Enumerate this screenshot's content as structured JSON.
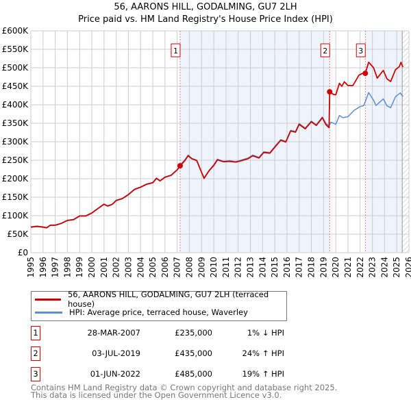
{
  "chart_data": {
    "type": "line",
    "title": "56, AARONS HILL, GODALMING, GU7 2LH",
    "subtitle": "Price paid vs. HM Land Registry's House Price Index (HPI)",
    "xlim": [
      1995,
      2026
    ],
    "ylim": [
      0,
      600000
    ],
    "x_ticks": [
      "1995",
      "1996",
      "1997",
      "1998",
      "1999",
      "2000",
      "2001",
      "2002",
      "2003",
      "2004",
      "2005",
      "2006",
      "2007",
      "2008",
      "2009",
      "2010",
      "2011",
      "2012",
      "2013",
      "2014",
      "2015",
      "2016",
      "2017",
      "2018",
      "2019",
      "2020",
      "2021",
      "2022",
      "2023",
      "2024",
      "2025",
      "2026"
    ],
    "y_ticks": [
      {
        "v": 0,
        "label": "£0"
      },
      {
        "v": 50000,
        "label": "£50K"
      },
      {
        "v": 100000,
        "label": "£100K"
      },
      {
        "v": 150000,
        "label": "£150K"
      },
      {
        "v": 200000,
        "label": "£200K"
      },
      {
        "v": 250000,
        "label": "£250K"
      },
      {
        "v": 300000,
        "label": "£300K"
      },
      {
        "v": 350000,
        "label": "£350K"
      },
      {
        "v": 400000,
        "label": "£400K"
      },
      {
        "v": 450000,
        "label": "£450K"
      },
      {
        "v": 500000,
        "label": "£500K"
      },
      {
        "v": 550000,
        "label": "£550K"
      },
      {
        "v": 600000,
        "label": "£600K"
      }
    ],
    "grid": true,
    "forecast_start": 2025.45,
    "series": [
      {
        "name": "HPI: Average price, terraced house, Waverley",
        "color": "#5b8fd4",
        "points": [
          [
            1995,
            70
          ],
          [
            1995.5,
            72
          ],
          [
            1996,
            70
          ],
          [
            1996.3,
            68
          ],
          [
            1996.6,
            75
          ],
          [
            1997,
            75
          ],
          [
            1997.5,
            80
          ],
          [
            1998,
            88
          ],
          [
            1998.5,
            90
          ],
          [
            1999,
            100
          ],
          [
            1999.5,
            100
          ],
          [
            2000,
            108
          ],
          [
            2000.5,
            120
          ],
          [
            2001,
            132
          ],
          [
            2001.3,
            127
          ],
          [
            2001.7,
            132
          ],
          [
            2002,
            142
          ],
          [
            2002.5,
            147
          ],
          [
            2003,
            158
          ],
          [
            2003.5,
            172
          ],
          [
            2004,
            178
          ],
          [
            2004.5,
            186
          ],
          [
            2005,
            190
          ],
          [
            2005.3,
            202
          ],
          [
            2005.6,
            195
          ],
          [
            2006,
            205
          ],
          [
            2006.5,
            210
          ],
          [
            2007,
            225
          ],
          [
            2007.24,
            237
          ],
          [
            2007.6,
            250
          ],
          [
            2007.9,
            264
          ],
          [
            2008.2,
            255
          ],
          [
            2008.6,
            250
          ],
          [
            2009,
            218
          ],
          [
            2009.2,
            202
          ],
          [
            2009.6,
            222
          ],
          [
            2010,
            238
          ],
          [
            2010.3,
            253
          ],
          [
            2010.8,
            247
          ],
          [
            2011.3,
            249
          ],
          [
            2011.8,
            246
          ],
          [
            2012.3,
            251
          ],
          [
            2012.8,
            256
          ],
          [
            2013.2,
            264
          ],
          [
            2013.7,
            258
          ],
          [
            2014.1,
            273
          ],
          [
            2014.6,
            271
          ],
          [
            2015.1,
            291
          ],
          [
            2015.5,
            306
          ],
          [
            2015.9,
            301
          ],
          [
            2016.3,
            331
          ],
          [
            2016.7,
            328
          ],
          [
            2017,
            349
          ],
          [
            2017.5,
            337
          ],
          [
            2018,
            356
          ],
          [
            2018.4,
            346
          ],
          [
            2018.9,
            367
          ],
          [
            2019.2,
            349
          ],
          [
            2019.45,
            343
          ],
          [
            2019.6,
            353
          ],
          [
            2020,
            347
          ],
          [
            2020.3,
            371
          ],
          [
            2020.6,
            365
          ],
          [
            2021,
            368
          ],
          [
            2021.5,
            385
          ],
          [
            2022,
            395
          ],
          [
            2022.3,
            398
          ],
          [
            2022.7,
            433
          ],
          [
            2023.1,
            412
          ],
          [
            2023.3,
            398
          ],
          [
            2023.9,
            416
          ],
          [
            2024.2,
            397
          ],
          [
            2024.5,
            392
          ],
          [
            2024.9,
            422
          ],
          [
            2025.3,
            432
          ],
          [
            2025.5,
            422
          ]
        ]
      },
      {
        "name": "56, AARONS HILL, GODALMING, GU7 2LH (terraced house)",
        "color": "#cc0000",
        "points": [
          [
            1995,
            69
          ],
          [
            1995.5,
            71
          ],
          [
            1996,
            69
          ],
          [
            1996.3,
            67
          ],
          [
            1996.6,
            74
          ],
          [
            1997,
            74
          ],
          [
            1997.5,
            79
          ],
          [
            1998,
            87
          ],
          [
            1998.5,
            89
          ],
          [
            1999,
            99
          ],
          [
            1999.5,
            99
          ],
          [
            2000,
            107
          ],
          [
            2000.5,
            119
          ],
          [
            2001,
            131
          ],
          [
            2001.3,
            126
          ],
          [
            2001.7,
            131
          ],
          [
            2002,
            141
          ],
          [
            2002.5,
            146
          ],
          [
            2003,
            157
          ],
          [
            2003.5,
            171
          ],
          [
            2004,
            177
          ],
          [
            2004.5,
            185
          ],
          [
            2005,
            189
          ],
          [
            2005.3,
            201
          ],
          [
            2005.6,
            194
          ],
          [
            2006,
            204
          ],
          [
            2006.5,
            209
          ],
          [
            2007,
            224
          ],
          [
            2007.24,
            235
          ],
          [
            2007.6,
            248
          ],
          [
            2007.9,
            262
          ],
          [
            2008.2,
            254
          ],
          [
            2008.6,
            249
          ],
          [
            2009,
            217
          ],
          [
            2009.2,
            201
          ],
          [
            2009.6,
            221
          ],
          [
            2010,
            236
          ],
          [
            2010.3,
            251
          ],
          [
            2010.8,
            246
          ],
          [
            2011.3,
            247
          ],
          [
            2011.8,
            245
          ],
          [
            2012.3,
            249
          ],
          [
            2012.8,
            254
          ],
          [
            2013.2,
            262
          ],
          [
            2013.7,
            256
          ],
          [
            2014.1,
            271
          ],
          [
            2014.6,
            269
          ],
          [
            2015.1,
            289
          ],
          [
            2015.5,
            304
          ],
          [
            2015.9,
            299
          ],
          [
            2016.3,
            329
          ],
          [
            2016.7,
            326
          ],
          [
            2017,
            347
          ],
          [
            2017.5,
            335
          ],
          [
            2018,
            354
          ],
          [
            2018.4,
            344
          ],
          [
            2018.9,
            365
          ],
          [
            2019.2,
            346
          ],
          [
            2019.45,
            338
          ],
          [
            2019.5,
            435
          ],
          [
            2019.8,
            428
          ],
          [
            2020,
            427
          ],
          [
            2020.3,
            458
          ],
          [
            2020.5,
            450
          ],
          [
            2020.7,
            462
          ],
          [
            2021,
            452
          ],
          [
            2021.4,
            452
          ],
          [
            2021.9,
            480
          ],
          [
            2022.2,
            485
          ],
          [
            2022.42,
            485
          ],
          [
            2022.7,
            515
          ],
          [
            2023.1,
            500
          ],
          [
            2023.4,
            472
          ],
          [
            2023.9,
            493
          ],
          [
            2024.2,
            470
          ],
          [
            2024.5,
            463
          ],
          [
            2024.9,
            495
          ],
          [
            2025.2,
            503
          ],
          [
            2025.35,
            515
          ],
          [
            2025.5,
            502
          ]
        ]
      }
    ],
    "sales": [
      {
        "num": "1",
        "x": 2007.24,
        "value": 235000,
        "date": "28-MAR-2007",
        "price": "£235,000",
        "hpi": "1% ↓ HPI"
      },
      {
        "num": "2",
        "x": 2019.5,
        "value": 435000,
        "date": "03-JUL-2019",
        "price": "£435,000",
        "hpi": "24% ↑ HPI"
      },
      {
        "num": "3",
        "x": 2022.42,
        "value": 485000,
        "date": "01-JUN-2022",
        "price": "£485,000",
        "hpi": "19% ↑ HPI"
      }
    ],
    "legend": [
      "56, AARONS HILL, GODALMING, GU7 2LH (terraced house)",
      "HPI: Average price, terraced house, Waverley"
    ],
    "legend_placement": "bottom"
  },
  "footer": [
    "Contains HM Land Registry data © Crown copyright and database right 2025.",
    "This data is licensed under the Open Government Licence v3.0."
  ]
}
